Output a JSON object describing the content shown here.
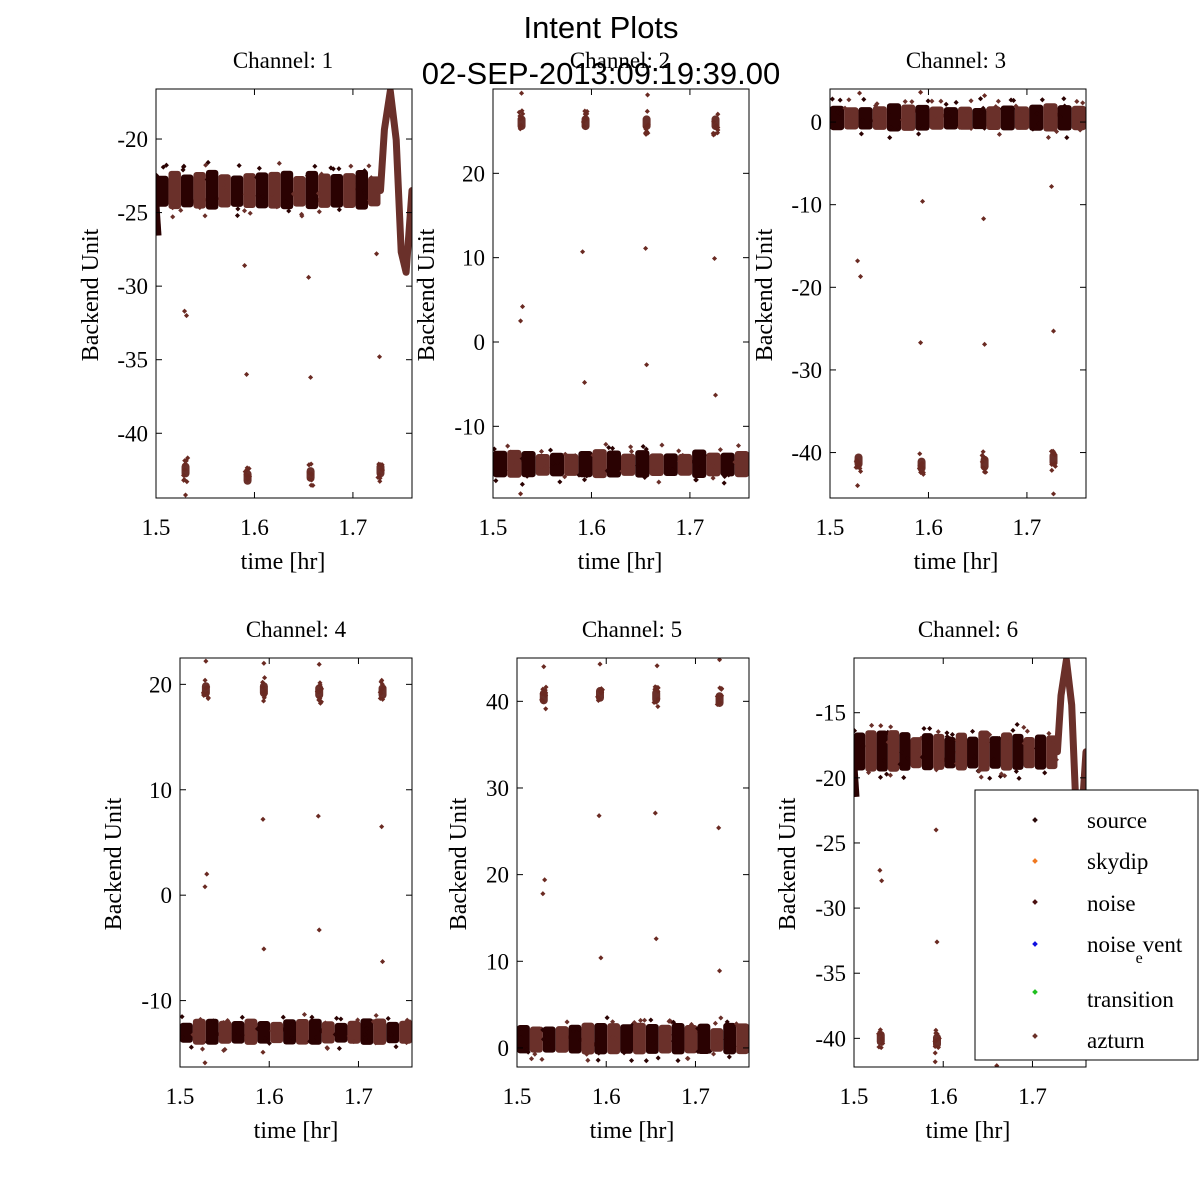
{
  "figure": {
    "title_line1": "Intent Plots",
    "title_line2": "02-SEP-2013:09:19:39.00"
  },
  "legend": {
    "entries": [
      {
        "label": "source",
        "color": "#2a0a0a"
      },
      {
        "label": "skydip",
        "color": "#f07820"
      },
      {
        "label": "noise",
        "color": "#4a1010"
      },
      {
        "label": "noise_event",
        "main": "noise",
        "sub": "e",
        "rest": "vent",
        "color": "#1010e0"
      },
      {
        "label": "transition",
        "color": "#20c020"
      },
      {
        "label": "azturn",
        "color": "#6a3028"
      }
    ]
  },
  "colors": {
    "segment_dark": "#2a0202",
    "segment_light": "#6a302a",
    "outlier": "#6a2a22"
  },
  "chart_data": [
    {
      "type": "scatter",
      "title": "Channel: 1",
      "xlabel": "time [hr]",
      "ylabel": "Backend Unit",
      "xlim": [
        1.5,
        1.76
      ],
      "ylim": [
        -44.4,
        -16.6
      ],
      "xticks": [
        1.5,
        1.6,
        1.7
      ],
      "yticks": [
        -20,
        -25,
        -30,
        -35,
        -40
      ],
      "xtick_labels": [
        "1.5",
        "1.6",
        "1.7"
      ],
      "ytick_labels": [
        "-20",
        "-25",
        "-30",
        "-35",
        "-40"
      ],
      "baseline": -23.5,
      "band_halfwidth": 1.2,
      "band_end": 1.728,
      "feature": "peak_dip",
      "clusters": [
        {
          "x": 1.53,
          "y": -42.5
        },
        {
          "x": 1.593,
          "y": -43.0
        },
        {
          "x": 1.657,
          "y": -42.8
        },
        {
          "x": 1.728,
          "y": -42.5
        }
      ],
      "outliers": [
        [
          1.529,
          -31.7
        ],
        [
          1.531,
          -32.0
        ],
        [
          1.59,
          -28.6
        ],
        [
          1.592,
          -36.0
        ],
        [
          1.655,
          -29.4
        ],
        [
          1.657,
          -36.2
        ],
        [
          1.724,
          -27.8
        ],
        [
          1.727,
          -34.8
        ],
        [
          1.53,
          -44.2
        ]
      ]
    },
    {
      "type": "scatter",
      "title": "Channel: 2",
      "xlabel": "time [hr]",
      "ylabel": "Backend Unit",
      "xlim": [
        1.5,
        1.76
      ],
      "ylim": [
        -18.5,
        30
      ],
      "xticks": [
        1.5,
        1.6,
        1.7
      ],
      "yticks": [
        20,
        10,
        0,
        -10
      ],
      "xtick_labels": [
        "1.5",
        "1.6",
        "1.7"
      ],
      "ytick_labels": [
        "20",
        "10",
        "0",
        "-10"
      ],
      "baseline": -14.5,
      "band_halfwidth": 1.5,
      "band_end": 1.76,
      "feature": "none",
      "clusters": [
        {
          "x": 1.529,
          "y": 26.0
        },
        {
          "x": 1.594,
          "y": 26.0
        },
        {
          "x": 1.656,
          "y": 26.0
        },
        {
          "x": 1.726,
          "y": 26.0
        }
      ],
      "outliers": [
        [
          1.528,
          2.5
        ],
        [
          1.53,
          4.2
        ],
        [
          1.591,
          10.7
        ],
        [
          1.593,
          -4.8
        ],
        [
          1.655,
          11.1
        ],
        [
          1.656,
          -2.7
        ],
        [
          1.725,
          9.9
        ],
        [
          1.726,
          -6.3
        ],
        [
          1.529,
          29.5
        ],
        [
          1.657,
          29.3
        ],
        [
          1.528,
          -18.0
        ]
      ]
    },
    {
      "type": "scatter",
      "title": "Channel: 3",
      "xlabel": "time [hr]",
      "ylabel": "Backend Unit",
      "xlim": [
        1.5,
        1.76
      ],
      "ylim": [
        -45.5,
        4
      ],
      "xticks": [
        1.5,
        1.6,
        1.7
      ],
      "yticks": [
        0,
        -10,
        -20,
        -30,
        -40
      ],
      "xtick_labels": [
        "1.5",
        "1.6",
        "1.7"
      ],
      "ytick_labels": [
        "0",
        "-10",
        "-20",
        "-30",
        "-40"
      ],
      "baseline": 0.5,
      "band_halfwidth": 1.5,
      "band_end": 1.76,
      "feature": "none",
      "clusters": [
        {
          "x": 1.529,
          "y": -41.0
        },
        {
          "x": 1.593,
          "y": -41.5
        },
        {
          "x": 1.657,
          "y": -41.3
        },
        {
          "x": 1.727,
          "y": -40.8
        }
      ],
      "outliers": [
        [
          1.528,
          -16.8
        ],
        [
          1.531,
          -18.7
        ],
        [
          1.594,
          -9.6
        ],
        [
          1.592,
          -26.7
        ],
        [
          1.656,
          -11.7
        ],
        [
          1.657,
          -26.9
        ],
        [
          1.725,
          -7.8
        ],
        [
          1.727,
          -25.3
        ],
        [
          1.53,
          3.5
        ],
        [
          1.592,
          3.6
        ],
        [
          1.657,
          3.2
        ],
        [
          1.528,
          -44.0
        ],
        [
          1.727,
          -45.0
        ]
      ]
    },
    {
      "type": "scatter",
      "title": "Channel: 4",
      "xlabel": "time [hr]",
      "ylabel": "Backend Unit",
      "xlim": [
        1.5,
        1.76
      ],
      "ylim": [
        -16.3,
        22.5
      ],
      "xticks": [
        1.5,
        1.6,
        1.7
      ],
      "yticks": [
        20,
        10,
        0,
        -10
      ],
      "xtick_labels": [
        "1.5",
        "1.6",
        "1.7"
      ],
      "ytick_labels": [
        "20",
        "10",
        "0",
        "-10"
      ],
      "baseline": -13.0,
      "band_halfwidth": 1.1,
      "band_end": 1.76,
      "feature": "none",
      "clusters": [
        {
          "x": 1.529,
          "y": 19.5
        },
        {
          "x": 1.594,
          "y": 19.5
        },
        {
          "x": 1.656,
          "y": 19.3
        },
        {
          "x": 1.727,
          "y": 19.3
        }
      ],
      "outliers": [
        [
          1.528,
          0.8
        ],
        [
          1.53,
          2.0
        ],
        [
          1.593,
          7.2
        ],
        [
          1.594,
          -5.1
        ],
        [
          1.655,
          7.5
        ],
        [
          1.656,
          -3.3
        ],
        [
          1.726,
          6.5
        ],
        [
          1.727,
          -6.3
        ],
        [
          1.529,
          22.2
        ],
        [
          1.594,
          22.0
        ],
        [
          1.656,
          21.9
        ],
        [
          1.528,
          -15.9
        ],
        [
          1.593,
          -14.9
        ]
      ]
    },
    {
      "type": "scatter",
      "title": "Channel: 5",
      "xlabel": "time [hr]",
      "ylabel": "Backend Unit",
      "xlim": [
        1.5,
        1.76
      ],
      "ylim": [
        -2.2,
        45
      ],
      "xticks": [
        1.5,
        1.6,
        1.7
      ],
      "yticks": [
        40,
        30,
        20,
        10,
        0
      ],
      "xtick_labels": [
        "1.5",
        "1.6",
        "1.7"
      ],
      "ytick_labels": [
        "40",
        "30",
        "20",
        "10",
        "0"
      ],
      "baseline": 1.0,
      "band_halfwidth": 1.6,
      "band_end": 1.76,
      "feature": "none",
      "clusters": [
        {
          "x": 1.53,
          "y": 40.5
        },
        {
          "x": 1.593,
          "y": 40.8
        },
        {
          "x": 1.656,
          "y": 40.6
        },
        {
          "x": 1.727,
          "y": 40.2
        }
      ],
      "outliers": [
        [
          1.529,
          17.8
        ],
        [
          1.531,
          19.4
        ],
        [
          1.592,
          26.8
        ],
        [
          1.594,
          10.4
        ],
        [
          1.655,
          27.1
        ],
        [
          1.656,
          12.6
        ],
        [
          1.726,
          25.4
        ],
        [
          1.727,
          8.9
        ],
        [
          1.53,
          44.0
        ],
        [
          1.593,
          44.3
        ],
        [
          1.657,
          44.1
        ],
        [
          1.727,
          44.8
        ]
      ]
    },
    {
      "type": "scatter",
      "title": "Channel: 6",
      "xlabel": "time [hr]",
      "ylabel": "Backend Unit",
      "xlim": [
        1.5,
        1.76
      ],
      "ylim": [
        -42.2,
        -10.8
      ],
      "xticks": [
        1.5,
        1.6,
        1.7
      ],
      "yticks": [
        -15,
        -20,
        -25,
        -30,
        -35,
        -40
      ],
      "xtick_labels": [
        "1.5",
        "1.6",
        "1.7"
      ],
      "ytick_labels": [
        "-15",
        "-20",
        "-25",
        "-30",
        "-35",
        "-40"
      ],
      "baseline": -18.0,
      "band_halfwidth": 1.4,
      "band_end": 1.728,
      "feature": "peak_dip",
      "clusters": [
        {
          "x": 1.53,
          "y": -40.0
        },
        {
          "x": 1.593,
          "y": -40.2
        }
      ],
      "outliers": [
        [
          1.529,
          -27.1
        ],
        [
          1.531,
          -27.9
        ],
        [
          1.592,
          -24.0
        ],
        [
          1.593,
          -32.6
        ],
        [
          1.53,
          -16.0
        ],
        [
          1.591,
          -41.8
        ],
        [
          1.66,
          -42.1
        ]
      ]
    }
  ]
}
